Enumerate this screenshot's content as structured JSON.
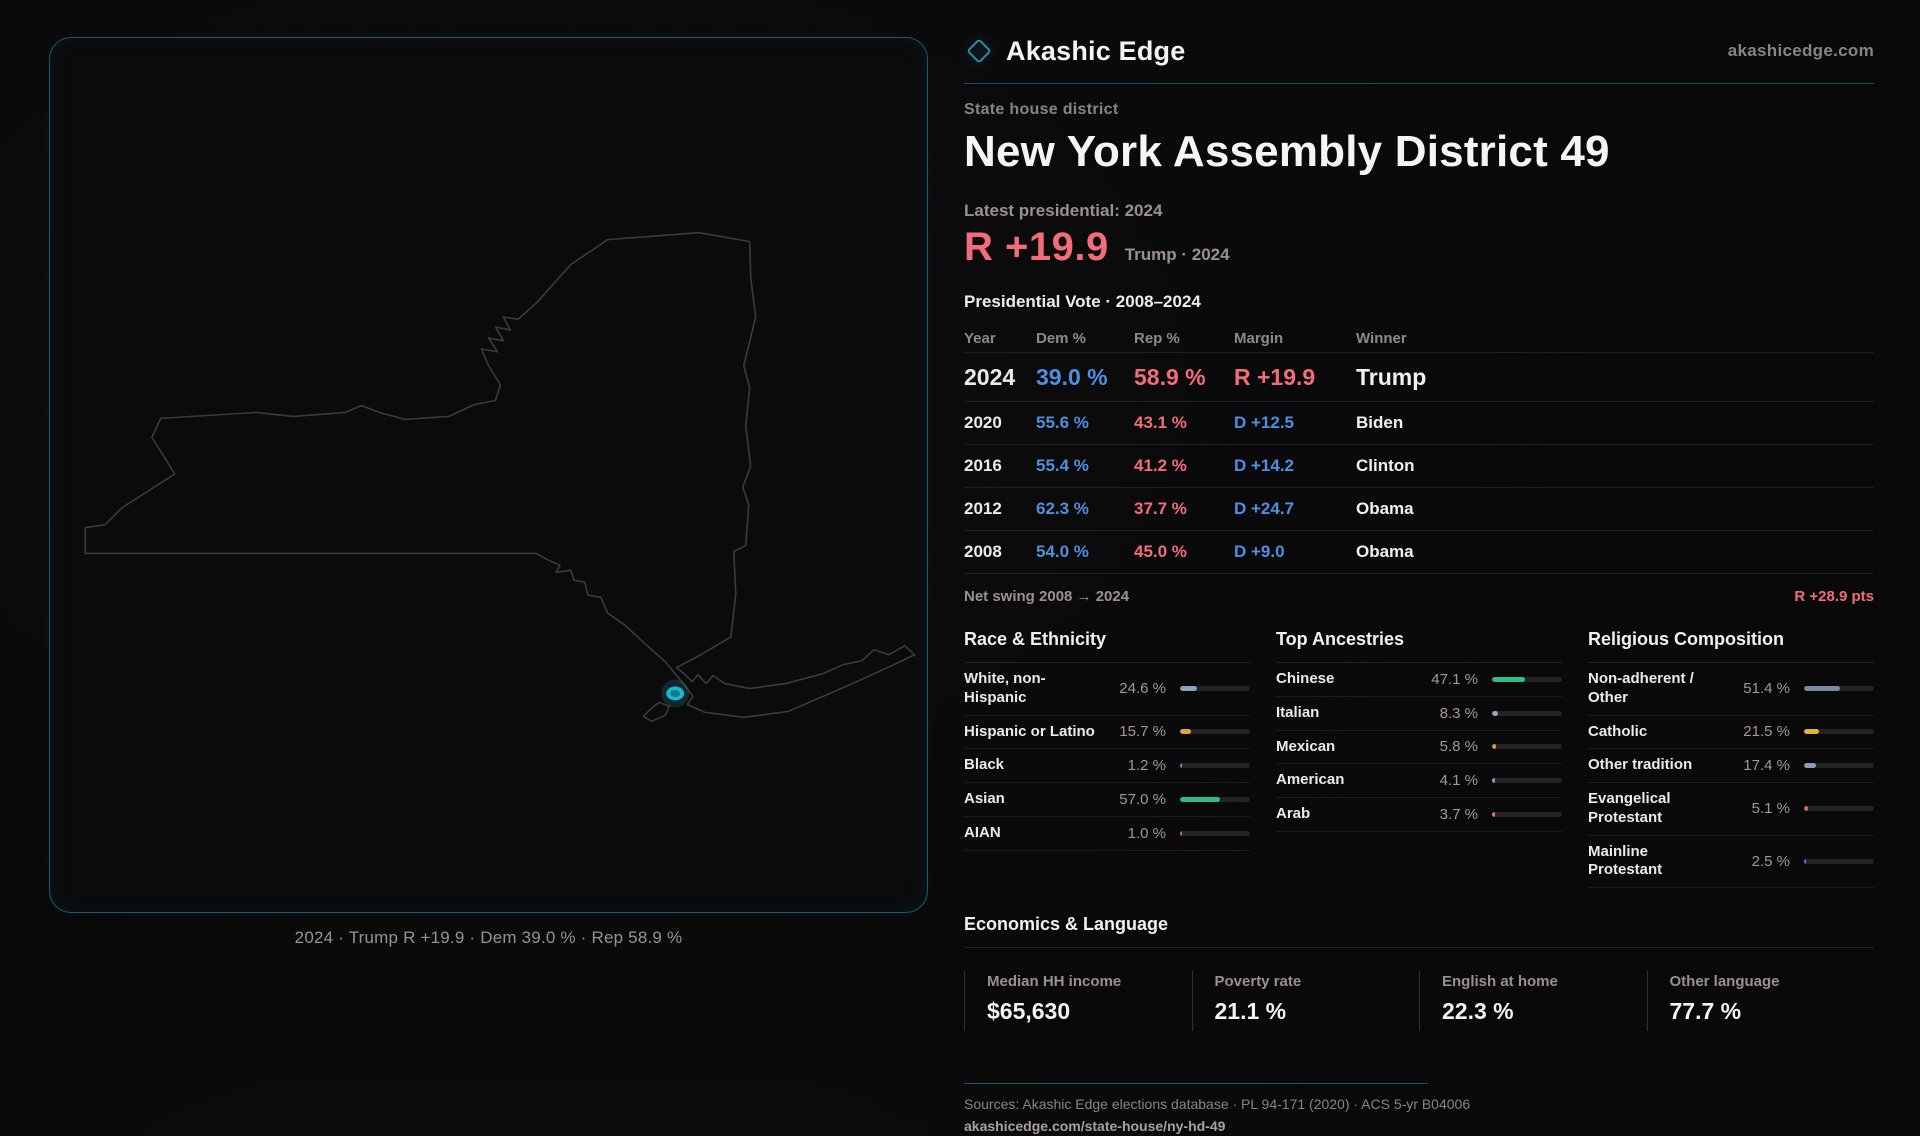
{
  "brand": {
    "name": "Akashic Edge",
    "domain": "akashicedge.com"
  },
  "district": {
    "kicker": "State house district",
    "title": "New York Assembly District 49"
  },
  "latest": {
    "label": "Latest presidential: 2024",
    "margin": "R +19.9",
    "detail": "Trump · 2024"
  },
  "colors": {
    "accent_teal": "#1fb6ca",
    "rep_red": "#f26d79",
    "dem_blue": "#4f8fe0",
    "panel_border": "#1c5a68",
    "map_outline": "#3b3b3e"
  },
  "vote_table": {
    "title": "Presidential Vote · 2008–2024",
    "columns": [
      "Year",
      "Dem %",
      "Rep %",
      "Margin",
      "Winner"
    ],
    "rows": [
      {
        "year": "2024",
        "dem": "39.0 %",
        "rep": "58.9 %",
        "margin": "R +19.9",
        "winner": "Trump",
        "party": "R",
        "featured": true
      },
      {
        "year": "2020",
        "dem": "55.6 %",
        "rep": "43.1 %",
        "margin": "D +12.5",
        "winner": "Biden",
        "party": "D",
        "featured": false
      },
      {
        "year": "2016",
        "dem": "55.4 %",
        "rep": "41.2 %",
        "margin": "D +14.2",
        "winner": "Clinton",
        "party": "D",
        "featured": false
      },
      {
        "year": "2012",
        "dem": "62.3 %",
        "rep": "37.7 %",
        "margin": "D +24.7",
        "winner": "Obama",
        "party": "D",
        "featured": false
      },
      {
        "year": "2008",
        "dem": "54.0 %",
        "rep": "45.0 %",
        "margin": "D +9.0",
        "winner": "Obama",
        "party": "D",
        "featured": false
      }
    ]
  },
  "net_swing": {
    "label": "Net swing 2008 → 2024",
    "value": "R +28.9 pts"
  },
  "chart_data": [
    {
      "type": "bar",
      "title": "Race & Ethnicity",
      "categories": [
        "White, non-Hispanic",
        "Hispanic or Latino",
        "Black",
        "Asian",
        "AIAN"
      ],
      "values": [
        24.6,
        15.7,
        1.2,
        57.0,
        1.0
      ],
      "value_labels": [
        "24.6 %",
        "15.7 %",
        "1.2 %",
        "57.0 %",
        "1.0 %"
      ],
      "bar_colors": [
        "#8da3c2",
        "#e2a33c",
        "#8578d8",
        "#2dbd8a",
        "#c8762f"
      ],
      "xlim": [
        0,
        100
      ]
    },
    {
      "type": "bar",
      "title": "Top Ancestries",
      "categories": [
        "Chinese",
        "Italian",
        "Mexican",
        "American",
        "Arab"
      ],
      "values": [
        47.1,
        8.3,
        5.8,
        4.1,
        3.7
      ],
      "value_labels": [
        "47.1 %",
        "8.3 %",
        "5.8 %",
        "4.1 %",
        "3.7 %"
      ],
      "bar_colors": [
        "#2dbd8a",
        "#93a7c4",
        "#e2952f",
        "#7f9cc4",
        "#e8679a"
      ],
      "xlim": [
        0,
        100
      ]
    },
    {
      "type": "bar",
      "title": "Religious Composition",
      "categories": [
        "Non-adherent / Other",
        "Catholic",
        "Other tradition",
        "Evangelical Protestant",
        "Mainline Protestant"
      ],
      "values": [
        51.4,
        21.5,
        17.4,
        5.1,
        2.5
      ],
      "value_labels": [
        "51.4 %",
        "21.5 %",
        "17.4 %",
        "5.1 %",
        "2.5 %"
      ],
      "bar_colors": [
        "#7c8aa0",
        "#e0b52f",
        "#8d9cb0",
        "#d96459",
        "#4a7fd4"
      ],
      "xlim": [
        0,
        100
      ]
    }
  ],
  "economics": {
    "title": "Economics & Language",
    "stats": [
      {
        "label": "Median HH income",
        "value": "$65,630"
      },
      {
        "label": "Poverty rate",
        "value": "21.1 %"
      },
      {
        "label": "English at home",
        "value": "22.3 %"
      },
      {
        "label": "Other language",
        "value": "77.7 %"
      }
    ]
  },
  "map": {
    "caption": "2024 · Trump R +19.9 · Dem 39.0 % · Rep 58.9 %"
  },
  "footer": {
    "sources": "Sources: Akashic Edge elections database · PL 94-171 (2020) · ACS 5-yr B04006",
    "permalink": "akashicedge.com/state-house/ny-hd-49"
  }
}
